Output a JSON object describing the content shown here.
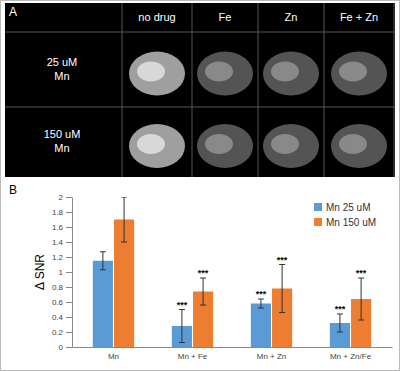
{
  "panel_a": {
    "label": "A",
    "columns": [
      "no drug",
      "Fe",
      "Zn",
      "Fe + Zn"
    ],
    "rows": [
      [
        "25 uM",
        "Mn"
      ],
      [
        "150 uM",
        "Mn"
      ]
    ]
  },
  "chart_data": {
    "type": "bar",
    "annotations": [
      "B"
    ],
    "y_label": "Δ SNR",
    "categories": [
      "Mn",
      "Mn + Fe",
      "Mn + Zn",
      "Mn + Zn/Fe"
    ],
    "series": [
      {
        "name": "Mn 25 uM",
        "color": "#5b9bd5",
        "values": [
          1.15,
          0.28,
          0.58,
          0.32
        ],
        "errors": [
          0.12,
          0.22,
          0.06,
          0.12
        ],
        "significance": [
          null,
          "***",
          "***",
          "***"
        ]
      },
      {
        "name": "Mn 150 uM",
        "color": "#ed7d31",
        "values": [
          1.7,
          0.74,
          0.78,
          0.64
        ],
        "errors": [
          0.3,
          0.18,
          0.32,
          0.28
        ],
        "significance": [
          null,
          "***",
          "***",
          "***"
        ]
      }
    ],
    "ylim": [
      0,
      2
    ],
    "yticks": [
      0,
      0.2,
      0.4,
      0.6,
      0.8,
      1,
      1.2,
      1.4,
      1.6,
      1.8,
      2
    ],
    "grid": false,
    "legend": "upper right"
  }
}
